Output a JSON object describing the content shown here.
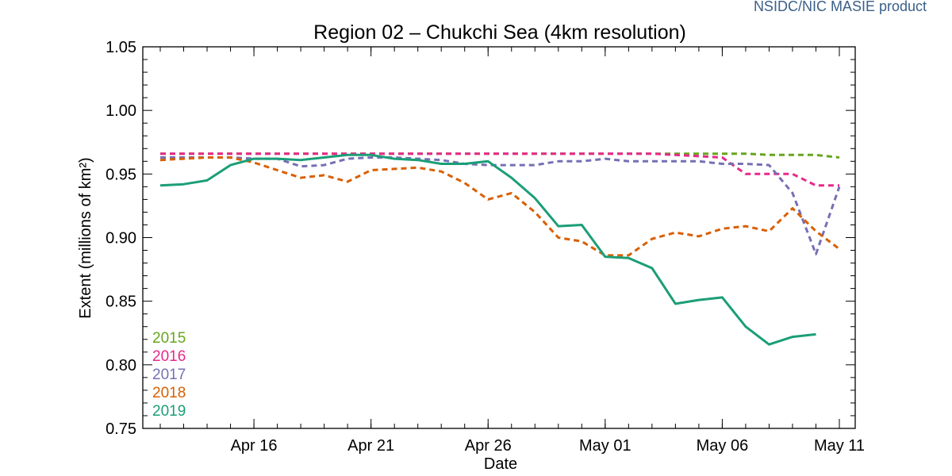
{
  "credit": "NSIDC/NIC MASIE product",
  "chart_data": {
    "type": "line",
    "title": "Region 02 – Chukchi Sea (4km resolution)",
    "xlabel": "Date",
    "ylabel": "Extent (millions of km²)",
    "ylim": [
      0.75,
      1.05
    ],
    "yticks": [
      "0.75",
      "0.80",
      "0.85",
      "0.90",
      "0.95",
      "1.00",
      "1.05"
    ],
    "x_start_day": 12,
    "x_end_day": 41,
    "xticks": [
      {
        "day": 16,
        "label": "Apr 16"
      },
      {
        "day": 21,
        "label": "Apr 21"
      },
      {
        "day": 26,
        "label": "Apr 26"
      },
      {
        "day": 31,
        "label": "May 01"
      },
      {
        "day": 36,
        "label": "May 06"
      },
      {
        "day": 41,
        "label": "May 11"
      }
    ],
    "series": [
      {
        "name": "2015",
        "color": "#66a61e",
        "dash": true,
        "values": [
          0.966,
          0.966,
          0.966,
          0.966,
          0.966,
          0.966,
          0.966,
          0.966,
          0.966,
          0.966,
          0.966,
          0.966,
          0.966,
          0.966,
          0.966,
          0.966,
          0.966,
          0.966,
          0.966,
          0.966,
          0.966,
          0.966,
          0.966,
          0.966,
          0.966,
          0.966,
          0.965,
          0.965,
          0.965,
          0.963
        ]
      },
      {
        "name": "2016",
        "color": "#e7298a",
        "dash": true,
        "values": [
          0.966,
          0.966,
          0.966,
          0.966,
          0.966,
          0.966,
          0.966,
          0.966,
          0.966,
          0.966,
          0.966,
          0.966,
          0.966,
          0.966,
          0.966,
          0.966,
          0.966,
          0.966,
          0.966,
          0.966,
          0.966,
          0.966,
          0.965,
          0.964,
          0.963,
          0.95,
          0.95,
          0.95,
          0.941,
          0.941
        ]
      },
      {
        "name": "2017",
        "color": "#7570b3",
        "dash": true,
        "values": [
          0.963,
          0.963,
          0.963,
          0.963,
          0.962,
          0.962,
          0.956,
          0.957,
          0.962,
          0.963,
          0.963,
          0.962,
          0.961,
          0.958,
          0.957,
          0.957,
          0.957,
          0.96,
          0.96,
          0.962,
          0.96,
          0.96,
          0.96,
          0.96,
          0.958,
          0.958,
          0.957,
          0.935,
          0.887,
          0.94
        ]
      },
      {
        "name": "2018",
        "color": "#d95f02",
        "dash": true,
        "values": [
          0.961,
          0.962,
          0.963,
          0.963,
          0.959,
          0.953,
          0.947,
          0.949,
          0.944,
          0.953,
          0.954,
          0.955,
          0.952,
          0.943,
          0.93,
          0.935,
          0.92,
          0.9,
          0.897,
          0.886,
          0.886,
          0.899,
          0.904,
          0.901,
          0.907,
          0.909,
          0.905,
          0.923,
          0.905,
          0.891
        ]
      },
      {
        "name": "2019",
        "color": "#1b9e77",
        "dash": false,
        "values": [
          0.941,
          0.942,
          0.945,
          0.957,
          0.962,
          0.962,
          0.961,
          0.963,
          0.965,
          0.965,
          0.962,
          0.961,
          0.958,
          0.958,
          0.96,
          0.947,
          0.931,
          0.909,
          0.91,
          0.885,
          0.884,
          0.876,
          0.848,
          0.851,
          0.853,
          0.83,
          0.816,
          0.822,
          0.824
        ]
      }
    ]
  }
}
